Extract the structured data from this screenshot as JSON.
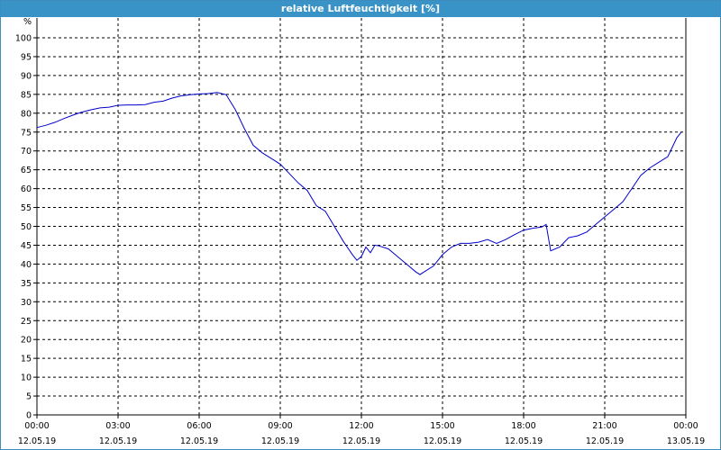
{
  "window": {
    "title": "relative Luftfeuchtigkeit [%]"
  },
  "colors": {
    "title_bg": "#3a93c7",
    "line": "#0000cc",
    "grid": "#000000"
  },
  "chart_data": {
    "type": "line",
    "title": "relative Luftfeuchtigkeit [%]",
    "ylabel": "%",
    "xlabel": "",
    "ylim": [
      0,
      100
    ],
    "yticks": [
      "0",
      "5",
      "10",
      "15",
      "20",
      "25",
      "30",
      "35",
      "40",
      "45",
      "50",
      "55",
      "60",
      "65",
      "70",
      "75",
      "80",
      "85",
      "90",
      "95",
      "100"
    ],
    "xticks": [
      {
        "time": "00:00",
        "date": "12.05.19"
      },
      {
        "time": "03:00",
        "date": "12.05.19"
      },
      {
        "time": "06:00",
        "date": "12.05.19"
      },
      {
        "time": "09:00",
        "date": "12.05.19"
      },
      {
        "time": "12:00",
        "date": "12.05.19"
      },
      {
        "time": "15:00",
        "date": "12.05.19"
      },
      {
        "time": "18:00",
        "date": "12.05.19"
      },
      {
        "time": "21:00",
        "date": "12.05.19"
      },
      {
        "time": "00:00",
        "date": "13.05.19"
      }
    ],
    "grid": true,
    "series": [
      {
        "x": [
          "00:00",
          "00:20",
          "00:40",
          "01:00",
          "01:20",
          "01:40",
          "02:00",
          "02:20",
          "02:40",
          "03:00",
          "03:20",
          "03:40",
          "04:00",
          "04:20",
          "04:40",
          "05:00",
          "05:20",
          "05:40",
          "06:00",
          "06:20",
          "06:40",
          "07:00",
          "07:20",
          "07:40",
          "08:00",
          "08:20",
          "08:40",
          "09:00",
          "09:20",
          "09:40",
          "10:00",
          "10:20",
          "10:40",
          "11:00",
          "11:20",
          "11:40",
          "11:50",
          "12:00",
          "12:10",
          "12:20",
          "12:30",
          "12:40",
          "13:00",
          "13:20",
          "13:40",
          "14:00",
          "14:10",
          "14:20",
          "14:40",
          "15:00",
          "15:20",
          "15:40",
          "16:00",
          "16:20",
          "16:40",
          "17:00",
          "17:20",
          "17:40",
          "18:00",
          "18:20",
          "18:40",
          "18:50",
          "19:00",
          "19:20",
          "19:40",
          "20:00",
          "20:20",
          "20:40",
          "21:00",
          "21:20",
          "21:40",
          "22:00",
          "22:20",
          "22:40",
          "23:00",
          "23:20",
          "23:40",
          "23:50"
        ],
        "y": [
          76.2,
          76.8,
          77.6,
          78.6,
          79.5,
          80.3,
          80.9,
          81.4,
          81.6,
          82.1,
          82.2,
          82.2,
          82.3,
          82.9,
          83.2,
          84.0,
          84.6,
          84.9,
          85.1,
          85.2,
          85.5,
          84.9,
          81.0,
          76.0,
          71.5,
          69.5,
          68.0,
          66.5,
          64.0,
          61.5,
          59.5,
          55.5,
          54.0,
          50.0,
          46.0,
          42.5,
          41.0,
          42.0,
          44.5,
          43.0,
          45.0,
          44.8,
          44.0,
          42.0,
          40.0,
          38.0,
          37.2,
          38.0,
          39.5,
          42.5,
          44.5,
          45.5,
          45.5,
          45.8,
          46.5,
          45.5,
          46.5,
          47.8,
          49.0,
          49.5,
          49.8,
          50.5,
          43.5,
          44.5,
          47.0,
          47.5,
          48.5,
          50.5,
          52.5,
          54.5,
          56.5,
          60.0,
          63.5,
          65.5,
          67.0,
          68.5,
          73.5,
          75.0
        ]
      }
    ]
  }
}
